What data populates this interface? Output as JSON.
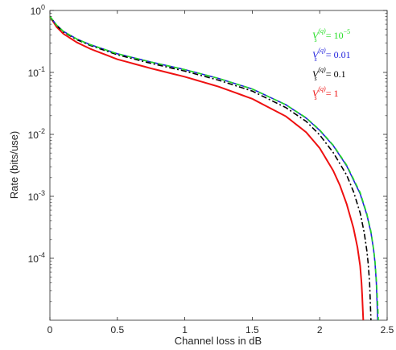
{
  "chart_data": {
    "type": "line",
    "title": "",
    "xlabel": "Channel loss in dB",
    "ylabel": "Rate (bits/use)",
    "xlim": [
      0,
      2.5
    ],
    "ylim": [
      1e-05,
      1
    ],
    "yscale": "log",
    "grid": false,
    "legend_position": "top-right",
    "x_ticks": [
      {
        "value": 0,
        "label": "0"
      },
      {
        "value": 0.5,
        "label": "0.5"
      },
      {
        "value": 1,
        "label": "1"
      },
      {
        "value": 1.5,
        "label": "1.5"
      },
      {
        "value": 2,
        "label": "2"
      },
      {
        "value": 2.5,
        "label": "2.5"
      }
    ],
    "y_ticks": [
      {
        "value": 1,
        "base": "10",
        "exp": "0"
      },
      {
        "value": 0.1,
        "base": "10",
        "exp": "-1"
      },
      {
        "value": 0.01,
        "base": "10",
        "exp": "-2"
      },
      {
        "value": 0.001,
        "base": "10",
        "exp": "-3"
      },
      {
        "value": 0.0001,
        "base": "10",
        "exp": "-4"
      }
    ],
    "series": [
      {
        "name": "V_s^(q) = 10^-5",
        "legend": {
          "var": "V",
          "sub": "s",
          "sup": "(q)",
          "eq": " = 10",
          "eq_sup": "−5"
        },
        "color": "#22dd22",
        "dash": "6,4",
        "x": [
          0,
          0.05,
          0.1,
          0.2,
          0.3,
          0.5,
          0.75,
          1.0,
          1.25,
          1.5,
          1.75,
          1.9,
          2.0,
          2.1,
          2.2,
          2.3,
          2.35,
          2.38,
          2.4,
          2.41,
          2.42,
          2.43,
          2.435
        ],
        "y": [
          0.8,
          0.58,
          0.46,
          0.345,
          0.28,
          0.2,
          0.147,
          0.111,
          0.08,
          0.054,
          0.03,
          0.0185,
          0.0118,
          0.0067,
          0.0032,
          0.00115,
          0.00052,
          0.00027,
          0.00014,
          9e-05,
          4.5e-05,
          1.8e-05,
          1e-05
        ]
      },
      {
        "name": "V_s^(q) = 0.01",
        "legend": {
          "var": "V",
          "sub": "s",
          "sup": "(q)",
          "eq": " = 0.01",
          "eq_sup": ""
        },
        "color": "#2222dd",
        "dash": "",
        "x": [
          0,
          0.05,
          0.1,
          0.2,
          0.3,
          0.5,
          0.75,
          1.0,
          1.25,
          1.5,
          1.75,
          1.9,
          2.0,
          2.1,
          2.2,
          2.3,
          2.35,
          2.38,
          2.4,
          2.41,
          2.42,
          2.425,
          2.43
        ],
        "y": [
          0.8,
          0.58,
          0.46,
          0.345,
          0.28,
          0.2,
          0.147,
          0.111,
          0.08,
          0.054,
          0.03,
          0.0183,
          0.0116,
          0.0066,
          0.0031,
          0.0011,
          0.0005,
          0.00026,
          0.000135,
          8.5e-05,
          4e-05,
          2e-05,
          1e-05
        ]
      },
      {
        "name": "V_s^(q) = 0.1",
        "legend": {
          "var": "V",
          "sub": "s",
          "sup": "(q)",
          "eq": " = 0.1",
          "eq_sup": ""
        },
        "color": "#000000",
        "dash": "7,3,2,3",
        "x": [
          0,
          0.05,
          0.1,
          0.2,
          0.3,
          0.5,
          0.75,
          1.0,
          1.25,
          1.5,
          1.75,
          1.9,
          2.0,
          2.1,
          2.2,
          2.25,
          2.3,
          2.33,
          2.35,
          2.36,
          2.37,
          2.375,
          2.38
        ],
        "y": [
          0.8,
          0.57,
          0.45,
          0.337,
          0.272,
          0.193,
          0.14,
          0.105,
          0.075,
          0.05,
          0.027,
          0.0162,
          0.0098,
          0.0051,
          0.0022,
          0.0012,
          0.00054,
          0.00026,
          0.00013,
          8e-05,
          4e-05,
          2e-05,
          1e-05
        ]
      },
      {
        "name": "V_s^(q) = 1",
        "legend": {
          "var": "V",
          "sub": "s",
          "sup": "(q)",
          "eq": " = 1",
          "eq_sup": ""
        },
        "color": "#ee1111",
        "dash": "",
        "x": [
          0,
          0.05,
          0.1,
          0.2,
          0.3,
          0.5,
          0.75,
          1.0,
          1.25,
          1.5,
          1.75,
          1.9,
          2.0,
          2.1,
          2.15,
          2.2,
          2.25,
          2.28,
          2.3,
          2.31,
          2.315,
          2.32,
          2.323
        ],
        "y": [
          0.8,
          0.54,
          0.42,
          0.305,
          0.24,
          0.163,
          0.116,
          0.085,
          0.059,
          0.0375,
          0.0195,
          0.0108,
          0.006,
          0.0026,
          0.0015,
          0.00075,
          0.00031,
          0.00015,
          7.5e-05,
          4e-05,
          2.5e-05,
          1.4e-05,
          1e-05
        ]
      }
    ]
  }
}
